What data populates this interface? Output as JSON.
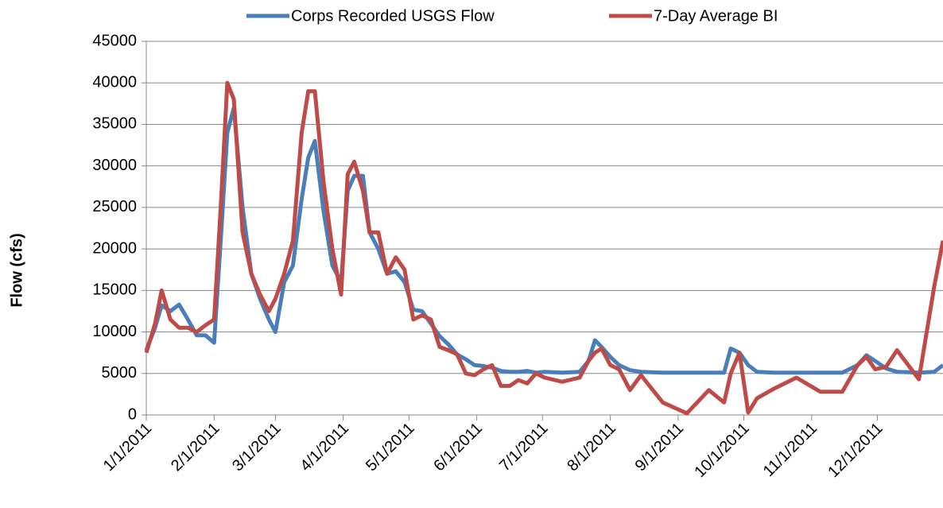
{
  "chart_data": {
    "type": "line",
    "y_label": "Flow (cfs)",
    "x": [
      "1/1/2011",
      "1/5/2011",
      "1/8/2011",
      "1/12/2011",
      "1/16/2011",
      "1/20/2011",
      "1/24/2011",
      "1/28/2011",
      "2/1/2011",
      "2/4/2011",
      "2/7/2011",
      "2/10/2011",
      "2/14/2011",
      "2/18/2011",
      "2/22/2011",
      "2/26/2011",
      "3/1/2011",
      "3/5/2011",
      "3/9/2011",
      "3/13/2011",
      "3/16/2011",
      "3/19/2011",
      "3/23/2011",
      "3/27/2011",
      "3/31/2011",
      "4/3/2011",
      "4/6/2011",
      "4/10/2011",
      "4/13/2011",
      "4/17/2011",
      "4/21/2011",
      "4/25/2011",
      "4/29/2011",
      "5/3/2011",
      "5/7/2011",
      "5/11/2011",
      "5/15/2011",
      "5/19/2011",
      "5/23/2011",
      "5/27/2011",
      "5/31/2011",
      "6/4/2011",
      "6/8/2011",
      "6/12/2011",
      "6/16/2011",
      "6/20/2011",
      "6/24/2011",
      "6/28/2011",
      "7/2/2011",
      "7/10/2011",
      "7/18/2011",
      "7/22/2011",
      "7/25/2011",
      "7/28/2011",
      "8/1/2011",
      "8/5/2011",
      "8/10/2011",
      "8/15/2011",
      "8/25/2011",
      "9/5/2011",
      "9/15/2011",
      "9/22/2011",
      "9/25/2011",
      "9/29/2011",
      "10/3/2011",
      "10/7/2011",
      "10/15/2011",
      "10/25/2011",
      "11/5/2011",
      "11/15/2011",
      "11/22/2011",
      "11/26/2011",
      "11/30/2011",
      "12/5/2011",
      "12/10/2011",
      "12/20/2011",
      "12/27/2011",
      "12/31/2011"
    ],
    "series": [
      {
        "name": "Corps Recorded USGS Flow",
        "color": "#4a7ebb",
        "values": [
          7800,
          10500,
          13200,
          12500,
          13300,
          11500,
          9600,
          9600,
          8700,
          21000,
          34000,
          37000,
          25000,
          17000,
          14000,
          11500,
          10000,
          16000,
          18000,
          26000,
          31000,
          33000,
          24500,
          18000,
          16000,
          27000,
          28800,
          28800,
          22000,
          20000,
          17000,
          17300,
          16000,
          12700,
          12500,
          11000,
          9500,
          8500,
          7300,
          6700,
          6000,
          5900,
          5700,
          5300,
          5200,
          5200,
          5300,
          5100,
          5200,
          5100,
          5200,
          6500,
          9000,
          8200,
          7000,
          6000,
          5400,
          5200,
          5100,
          5100,
          5100,
          5100,
          8000,
          7500,
          6000,
          5200,
          5100,
          5100,
          5100,
          5100,
          6000,
          7200,
          6500,
          5600,
          5200,
          5100,
          5200,
          6000
        ]
      },
      {
        "name": "7-Day Average BI",
        "color": "#be4b48",
        "values": [
          7500,
          11000,
          15000,
          11500,
          10500,
          10500,
          10000,
          10800,
          11500,
          25000,
          40000,
          38000,
          22000,
          17000,
          14500,
          12500,
          14000,
          17000,
          21000,
          34000,
          39000,
          39000,
          28000,
          20000,
          14500,
          29000,
          30500,
          27000,
          22000,
          22000,
          17000,
          19000,
          17500,
          11500,
          12000,
          11500,
          8200,
          7800,
          7300,
          5000,
          4800,
          5500,
          6000,
          3500,
          3500,
          4200,
          3800,
          5000,
          4500,
          4000,
          4500,
          6500,
          7500,
          8000,
          6000,
          5500,
          3000,
          4800,
          1500,
          200,
          3000,
          1500,
          5000,
          7500,
          300,
          2000,
          3200,
          4500,
          2800,
          2800,
          6000,
          7000,
          5500,
          5800,
          7800,
          4300,
          15500,
          21000
        ]
      }
    ],
    "xlim": [
      "1/1/2011",
      "12/31/2011"
    ],
    "xticks": [
      "1/1/2011",
      "2/1/2011",
      "3/1/2011",
      "4/1/2011",
      "5/1/2011",
      "6/1/2011",
      "7/1/2011",
      "8/1/2011",
      "9/1/2011",
      "10/1/2011",
      "11/1/2011",
      "12/1/2011"
    ],
    "ylim": [
      0,
      45000
    ],
    "yticks": [
      0,
      5000,
      10000,
      15000,
      20000,
      25000,
      30000,
      35000,
      40000,
      45000
    ],
    "grid": true
  }
}
